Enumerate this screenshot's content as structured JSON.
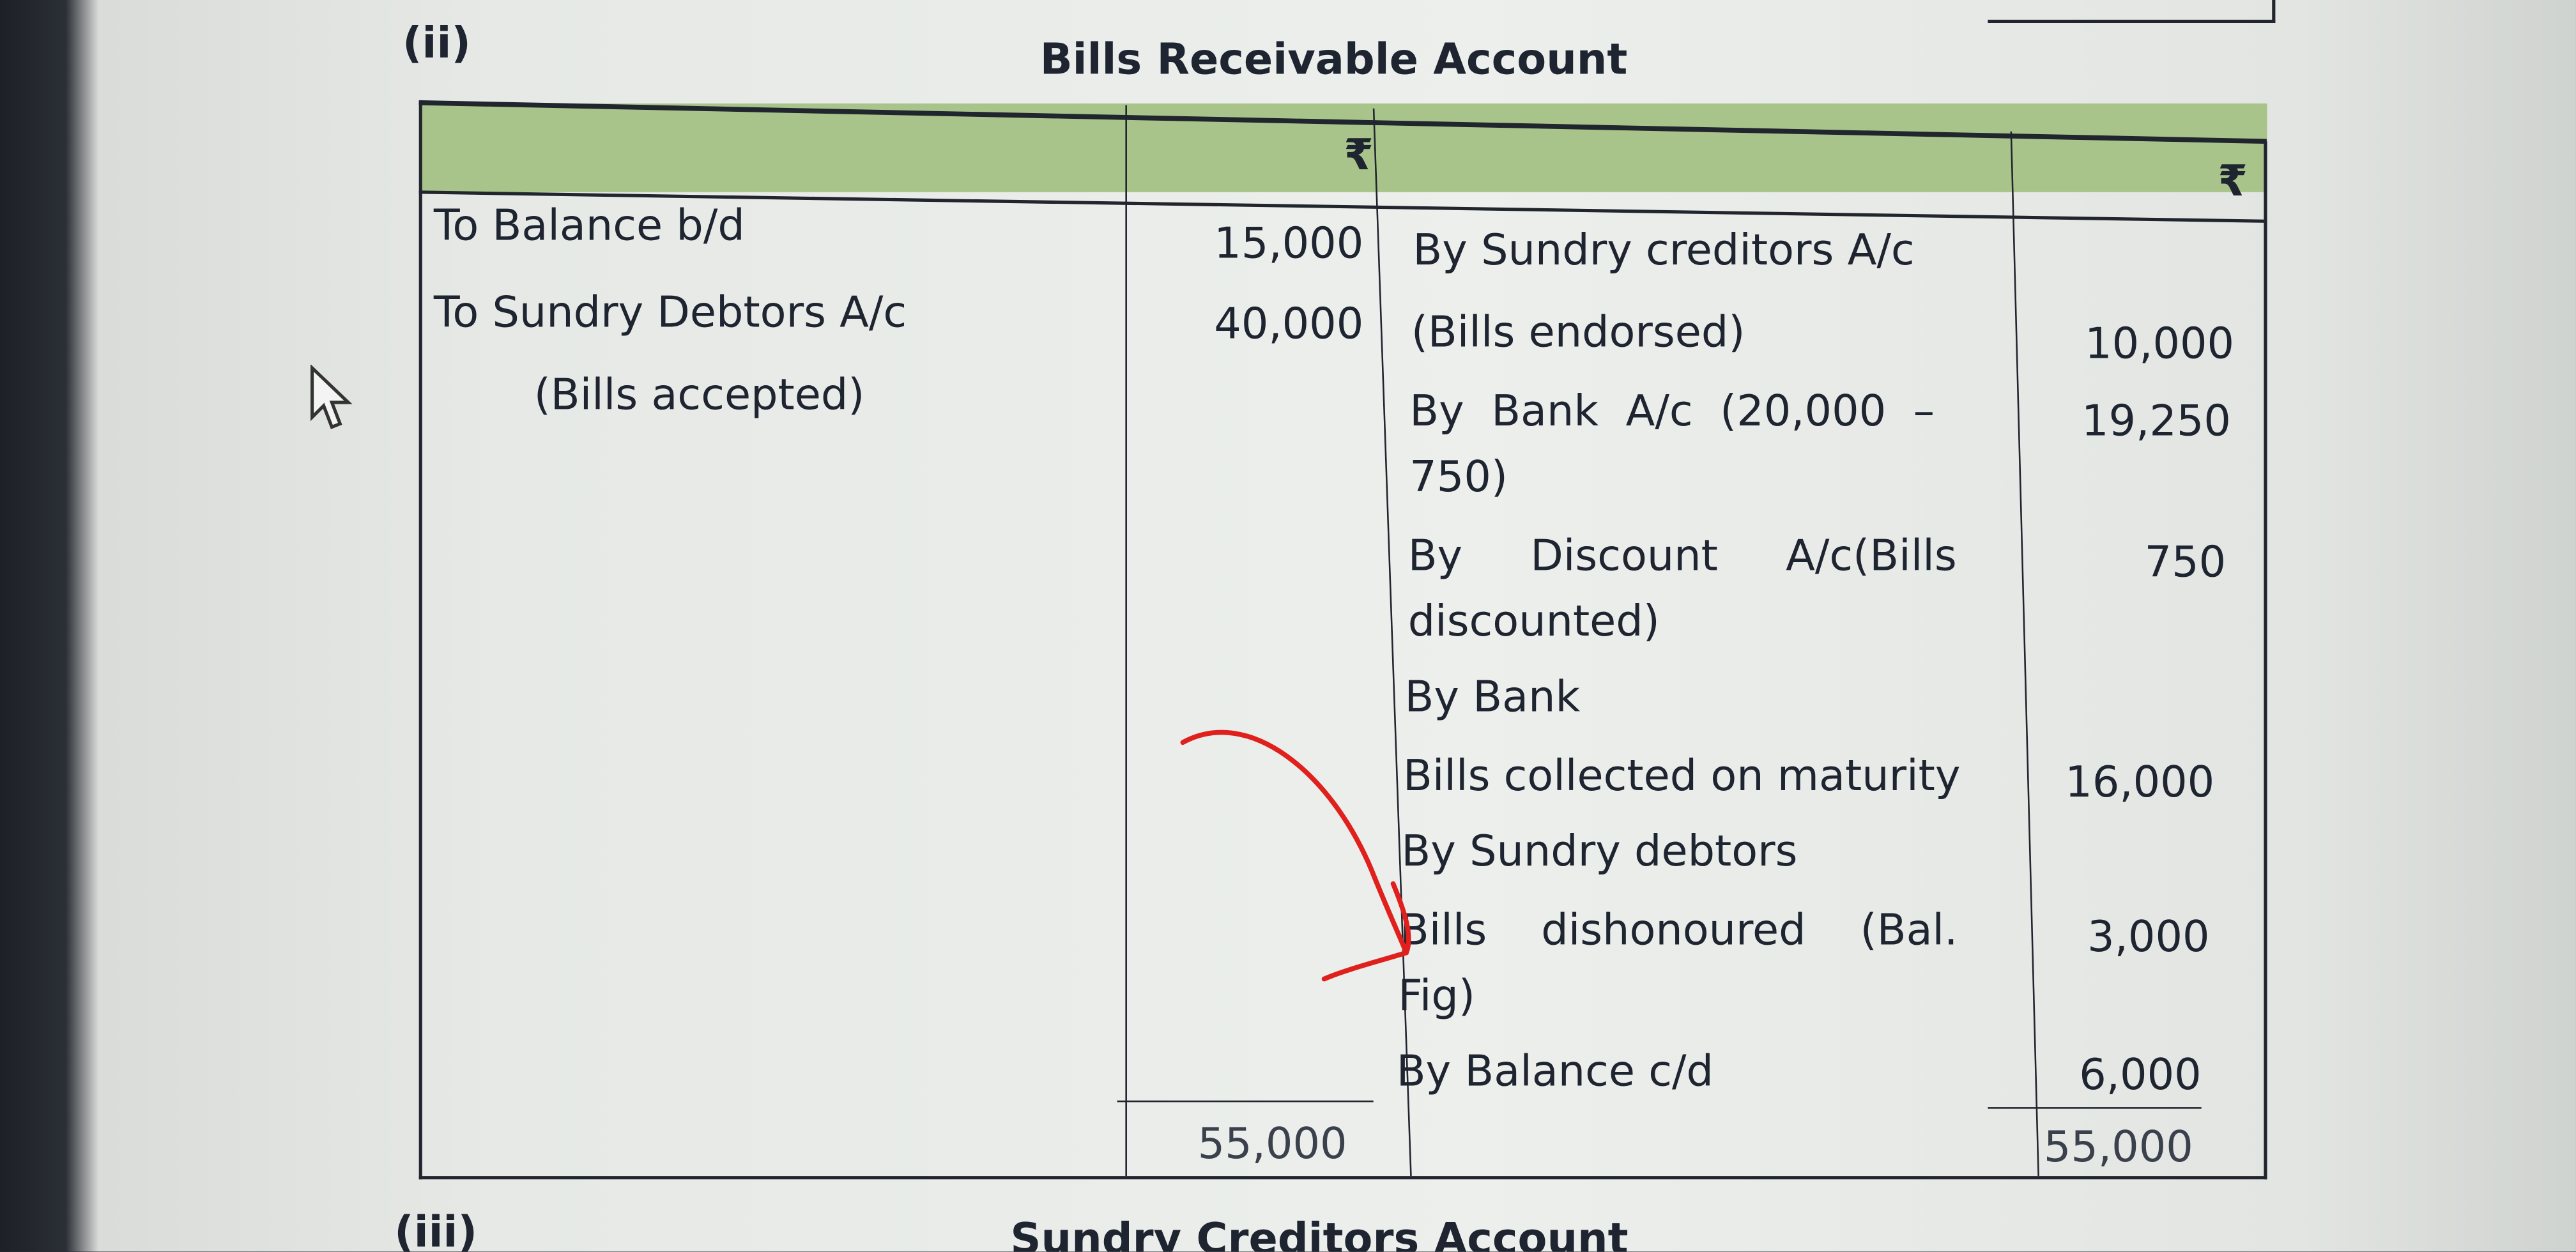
{
  "section_label": "(ii)",
  "title": "Bills Receivable Account",
  "header": {
    "left_amount_symbol": "₹",
    "right_amount_symbol": "₹"
  },
  "debit": [
    {
      "text": "To Balance b/d",
      "amount": "15,000"
    },
    {
      "text": "To Sundry Debtors A/c",
      "amount": "40,000"
    },
    {
      "text": "(Bills accepted)",
      "amount": ""
    }
  ],
  "credit": [
    {
      "lines": [
        "By Sundry creditors A/c",
        "(Bills endorsed)"
      ],
      "amount": "10,000"
    },
    {
      "lines": [
        "By  Bank  A/c  (20,000  –",
        "750)"
      ],
      "amount": "19,250"
    },
    {
      "lines": [
        "By     Discount     A/c(Bills",
        "discounted)"
      ],
      "amount": "750"
    },
    {
      "lines": [
        "By Bank",
        "Bills collected on maturity"
      ],
      "amount": "16,000"
    },
    {
      "lines": [
        "By Sundry debtors",
        "Bills    dishonoured    (Bal.",
        "Fig)"
      ],
      "amount": "3,000"
    },
    {
      "lines": [
        "By Balance c/d"
      ],
      "amount": "6,000"
    }
  ],
  "totals": {
    "debit": "55,000",
    "credit": "55,000"
  },
  "next_section_label": "(iii)",
  "next_title": "Sundry Creditors Account",
  "colors": {
    "header_green": "#a9c48a",
    "annotation_red": "#e0201c"
  }
}
